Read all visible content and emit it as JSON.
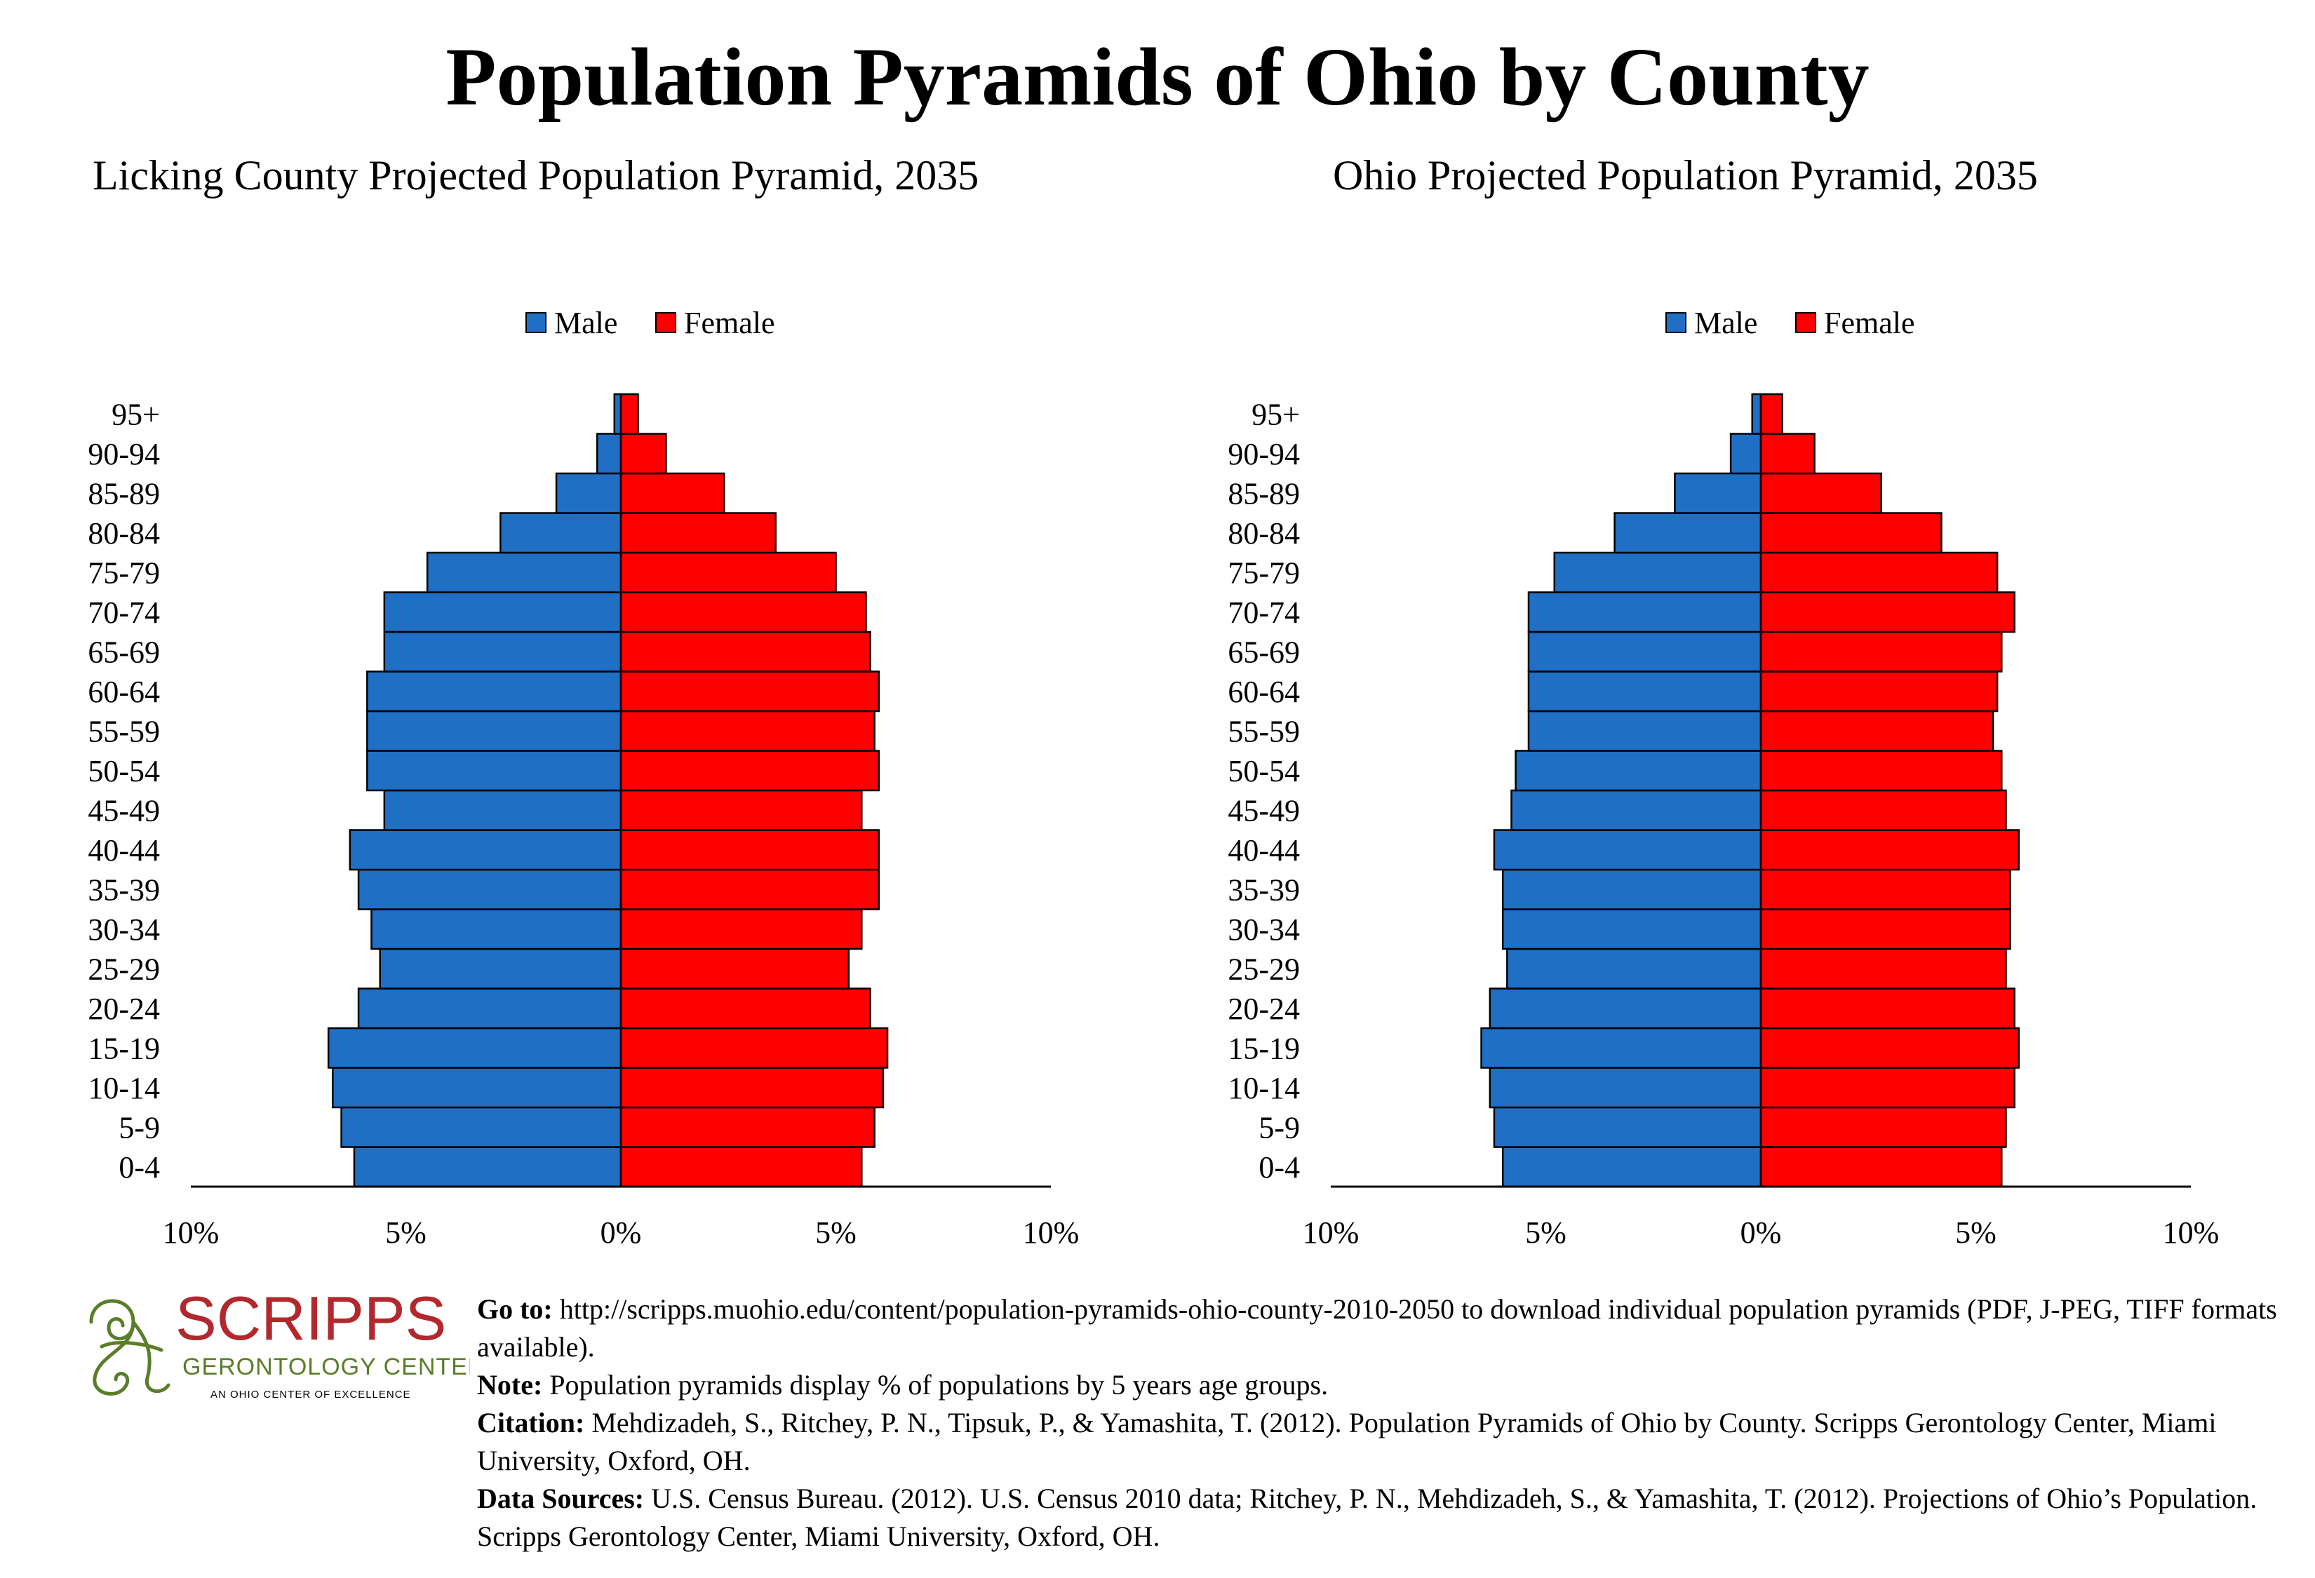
{
  "page_title": "Population Pyramids of Ohio by County",
  "colors": {
    "male": "#1f6fc5",
    "female": "#ff0000",
    "outline": "#000000",
    "logo_red": "#b3282d",
    "logo_green": "#5a7d2a"
  },
  "logo": {
    "name": "SCRIPPS",
    "subtitle": "GERONTOLOGY CENTER",
    "tagline": "AN OHIO CENTER OF EXCELLENCE"
  },
  "notes": [
    {
      "label": "Go to:",
      "text": " http://scripps.muohio.edu/content/population-pyramids-ohio-county-2010-2050 to download individual population pyramids (PDF, J-PEG, TIFF formats available)."
    },
    {
      "label": "Note:",
      "text": " Population pyramids display % of populations by 5 years age groups."
    },
    {
      "label": "Citation:",
      "text": " Mehdizadeh, S., Ritchey, P. N., Tipsuk, P., & Yamashita, T. (2012). Population Pyramids of Ohio by County. Scripps Gerontology Center, Miami University, Oxford, OH."
    },
    {
      "label": "Data Sources:",
      "text": " U.S. Census Bureau. (2012). U.S. Census 2010 data; Ritchey, P. N., Mehdizadeh, S., & Yamashita, T. (2012). Projections of Ohio’s Population. Scripps Gerontology Center, Miami University, Oxford, OH."
    }
  ],
  "chart_data": [
    {
      "type": "bar",
      "orientation": "horizontal",
      "title": "Licking County Projected Population Pyramid, 2035",
      "categories": [
        "0-4",
        "5-9",
        "10-14",
        "15-19",
        "20-24",
        "25-29",
        "30-34",
        "35-39",
        "40-44",
        "45-49",
        "50-54",
        "55-59",
        "60-64",
        "65-69",
        "70-74",
        "75-79",
        "80-84",
        "85-89",
        "90-94",
        "95+"
      ],
      "series": [
        {
          "name": "Male",
          "values": [
            6.2,
            6.5,
            6.7,
            6.8,
            6.1,
            5.6,
            5.8,
            6.1,
            6.3,
            5.5,
            5.9,
            5.9,
            5.9,
            5.5,
            5.5,
            4.5,
            2.8,
            1.5,
            0.55,
            0.15
          ]
        },
        {
          "name": "Female",
          "values": [
            5.6,
            5.9,
            6.1,
            6.2,
            5.8,
            5.3,
            5.6,
            6.0,
            6.0,
            5.6,
            6.0,
            5.9,
            6.0,
            5.8,
            5.7,
            5.0,
            3.6,
            2.4,
            1.05,
            0.4
          ]
        }
      ],
      "xlim": [
        -10,
        10
      ],
      "x_ticks": [
        "10%",
        "5%",
        "0%",
        "5%",
        "10%"
      ],
      "legend": "top-center",
      "grid": false
    },
    {
      "type": "bar",
      "orientation": "horizontal",
      "title": "Ohio Projected Population Pyramid, 2035",
      "categories": [
        "0-4",
        "5-9",
        "10-14",
        "15-19",
        "20-24",
        "25-29",
        "30-34",
        "35-39",
        "40-44",
        "45-49",
        "50-54",
        "55-59",
        "60-64",
        "65-69",
        "70-74",
        "75-79",
        "80-84",
        "85-89",
        "90-94",
        "95+"
      ],
      "series": [
        {
          "name": "Male",
          "values": [
            6.0,
            6.2,
            6.3,
            6.5,
            6.3,
            5.9,
            6.0,
            6.0,
            6.2,
            5.8,
            5.7,
            5.4,
            5.4,
            5.4,
            5.4,
            4.8,
            3.4,
            2.0,
            0.7,
            0.2
          ]
        },
        {
          "name": "Female",
          "values": [
            5.6,
            5.7,
            5.9,
            6.0,
            5.9,
            5.7,
            5.8,
            5.8,
            6.0,
            5.7,
            5.6,
            5.4,
            5.5,
            5.6,
            5.9,
            5.5,
            4.2,
            2.8,
            1.25,
            0.5
          ]
        }
      ],
      "xlim": [
        -10,
        10
      ],
      "x_ticks": [
        "10%",
        "5%",
        "0%",
        "5%",
        "10%"
      ],
      "legend": "top-center",
      "grid": false
    }
  ]
}
